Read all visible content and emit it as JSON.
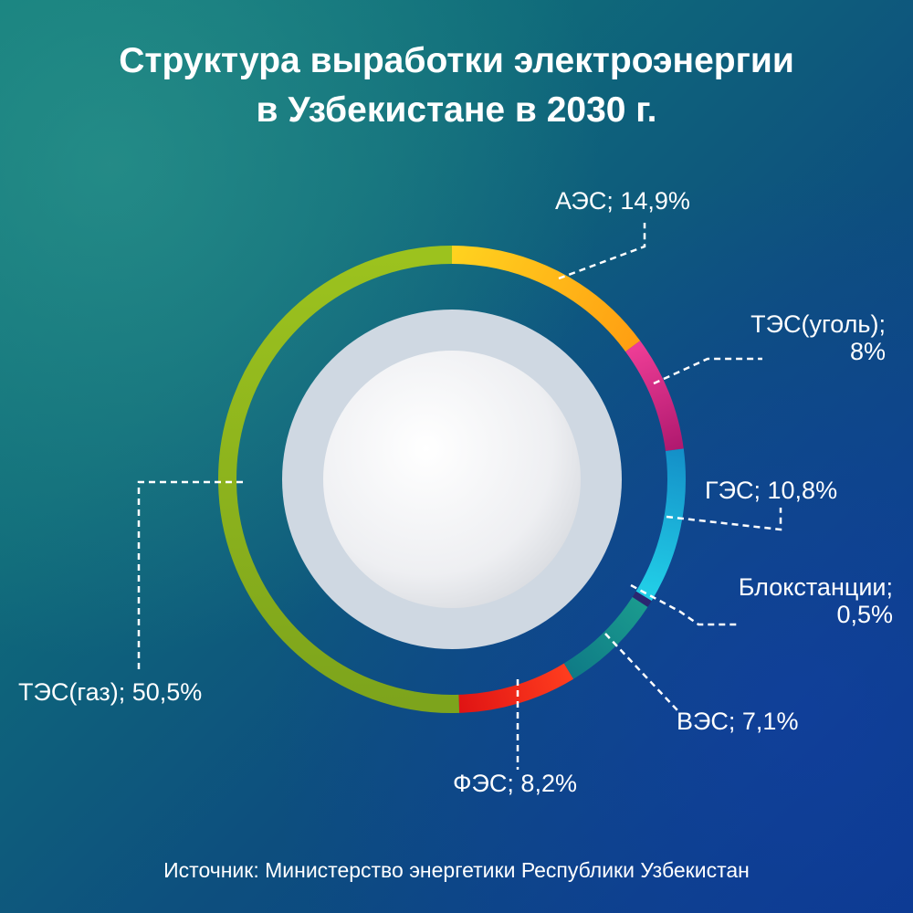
{
  "title_line1": "Структура выработки электроэнергии",
  "title_line2": "в Узбекистане в 2030 г.",
  "source": "Источник: Министерство энергетики Республики Узбекистан",
  "chart_data": {
    "type": "pie",
    "style": "donut",
    "title": "Структура выработки электроэнергии в Узбекистане в 2030 г.",
    "unit": "%",
    "segments": [
      {
        "name": "АЭС",
        "value": 14.9,
        "label": "АЭС; 14,9%",
        "color_start": "#ffd21f",
        "color_end": "#ff9f12"
      },
      {
        "name": "ТЭС(уголь)",
        "value": 8.0,
        "label_line1": "ТЭС(уголь);",
        "label_line2": "8%",
        "color_start": "#ee3d96",
        "color_end": "#b0196f"
      },
      {
        "name": "ГЭС",
        "value": 10.8,
        "label": "ГЭС; 10,8%",
        "color_start": "#1490c8",
        "color_end": "#22d0e8"
      },
      {
        "name": "Блокстанции",
        "value": 0.5,
        "label_line1": "Блокстанции;",
        "label_line2": "0,5%",
        "color_start": "#2a2670",
        "color_end": "#2a2670"
      },
      {
        "name": "ВЭС",
        "value": 7.1,
        "label": "ВЭС; 7,1%",
        "color_start": "#1a9a8e",
        "color_end": "#0f7b86"
      },
      {
        "name": "ФЭС",
        "value": 8.2,
        "label": "ФЭС; 8,2%",
        "color_start": "#ff3d1e",
        "color_end": "#e01414"
      },
      {
        "name": "ТЭС(газ)",
        "value": 50.5,
        "label": "ТЭС(газ); 50,5%",
        "color_start": "#7da41c",
        "color_end": "#9cc21e"
      }
    ]
  }
}
